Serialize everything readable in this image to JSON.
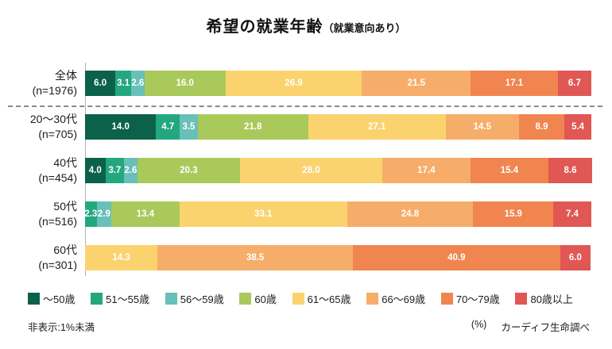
{
  "title": {
    "main": "希望の就業年齢",
    "sub": "（就業意向あり）"
  },
  "legend": [
    {
      "label": "～50歳",
      "color": "#0b614a"
    },
    {
      "label": "51～55歳",
      "color": "#23a77e"
    },
    {
      "label": "56～59歳",
      "color": "#68c0b8"
    },
    {
      "label": "60歳",
      "color": "#a9c95b"
    },
    {
      "label": "61～65歳",
      "color": "#fbd36e"
    },
    {
      "label": "66～69歳",
      "color": "#f6ad69"
    },
    {
      "label": "70～79歳",
      "color": "#f0854f"
    },
    {
      "label": "80歳以上",
      "color": "#e05753"
    }
  ],
  "chart_data": {
    "type": "bar",
    "stacked": true,
    "orientation": "horizontal",
    "unit": "%",
    "xlim": [
      0,
      100
    ],
    "title": "希望の就業年齢（就業意向あり）",
    "bins": [
      "～50歳",
      "51～55歳",
      "56～59歳",
      "60歳",
      "61～65歳",
      "66～69歳",
      "70～79歳",
      "80歳以上"
    ],
    "categories": [
      "全体 (n=1976)",
      "20～30代 (n=705)",
      "40代 (n=454)",
      "50代 (n=516)",
      "60代 (n=301)"
    ],
    "rows": [
      {
        "name": "全体",
        "n": "(n=1976)",
        "segments": [
          {
            "bin": "～50歳",
            "value": 6.0
          },
          {
            "bin": "51～55歳",
            "value": 3.1
          },
          {
            "bin": "56～59歳",
            "value": 2.6
          },
          {
            "bin": "60歳",
            "value": 16.0
          },
          {
            "bin": "61～65歳",
            "value": 26.9
          },
          {
            "bin": "66～69歳",
            "value": 21.5
          },
          {
            "bin": "70～79歳",
            "value": 17.1
          },
          {
            "bin": "80歳以上",
            "value": 6.7
          }
        ]
      },
      {
        "name": "20～30代",
        "n": "(n=705)",
        "segments": [
          {
            "bin": "～50歳",
            "value": 14.0
          },
          {
            "bin": "51～55歳",
            "value": 4.7
          },
          {
            "bin": "56～59歳",
            "value": 3.5
          },
          {
            "bin": "60歳",
            "value": 21.8
          },
          {
            "bin": "61～65歳",
            "value": 27.1
          },
          {
            "bin": "66～69歳",
            "value": 14.5
          },
          {
            "bin": "70～79歳",
            "value": 8.9
          },
          {
            "bin": "80歳以上",
            "value": 5.4
          }
        ]
      },
      {
        "name": "40代",
        "n": "(n=454)",
        "segments": [
          {
            "bin": "～50歳",
            "value": 4.0
          },
          {
            "bin": "51～55歳",
            "value": 3.7
          },
          {
            "bin": "56～59歳",
            "value": 2.6
          },
          {
            "bin": "60歳",
            "value": 20.3
          },
          {
            "bin": "61～65歳",
            "value": 28.0
          },
          {
            "bin": "66～69歳",
            "value": 17.4
          },
          {
            "bin": "70～79歳",
            "value": 15.4
          },
          {
            "bin": "80歳以上",
            "value": 8.6
          }
        ]
      },
      {
        "name": "50代",
        "n": "(n=516)",
        "segments": [
          {
            "bin": "51～55歳",
            "value": 2.3
          },
          {
            "bin": "56～59歳",
            "value": 2.9
          },
          {
            "bin": "60歳",
            "value": 13.4
          },
          {
            "bin": "61～65歳",
            "value": 33.1
          },
          {
            "bin": "66～69歳",
            "value": 24.8
          },
          {
            "bin": "70～79歳",
            "value": 15.9
          },
          {
            "bin": "80歳以上",
            "value": 7.4
          }
        ]
      },
      {
        "name": "60代",
        "n": "(n=301)",
        "segments": [
          {
            "bin": "61～65歳",
            "value": 14.3
          },
          {
            "bin": "66～69歳",
            "value": 38.5
          },
          {
            "bin": "70～79歳",
            "value": 40.9
          },
          {
            "bin": "80歳以上",
            "value": 6.0
          }
        ]
      }
    ]
  },
  "footnotes": {
    "left": "非表示:1%未満",
    "unit": "(%)",
    "source": "カーディフ生命調べ"
  }
}
